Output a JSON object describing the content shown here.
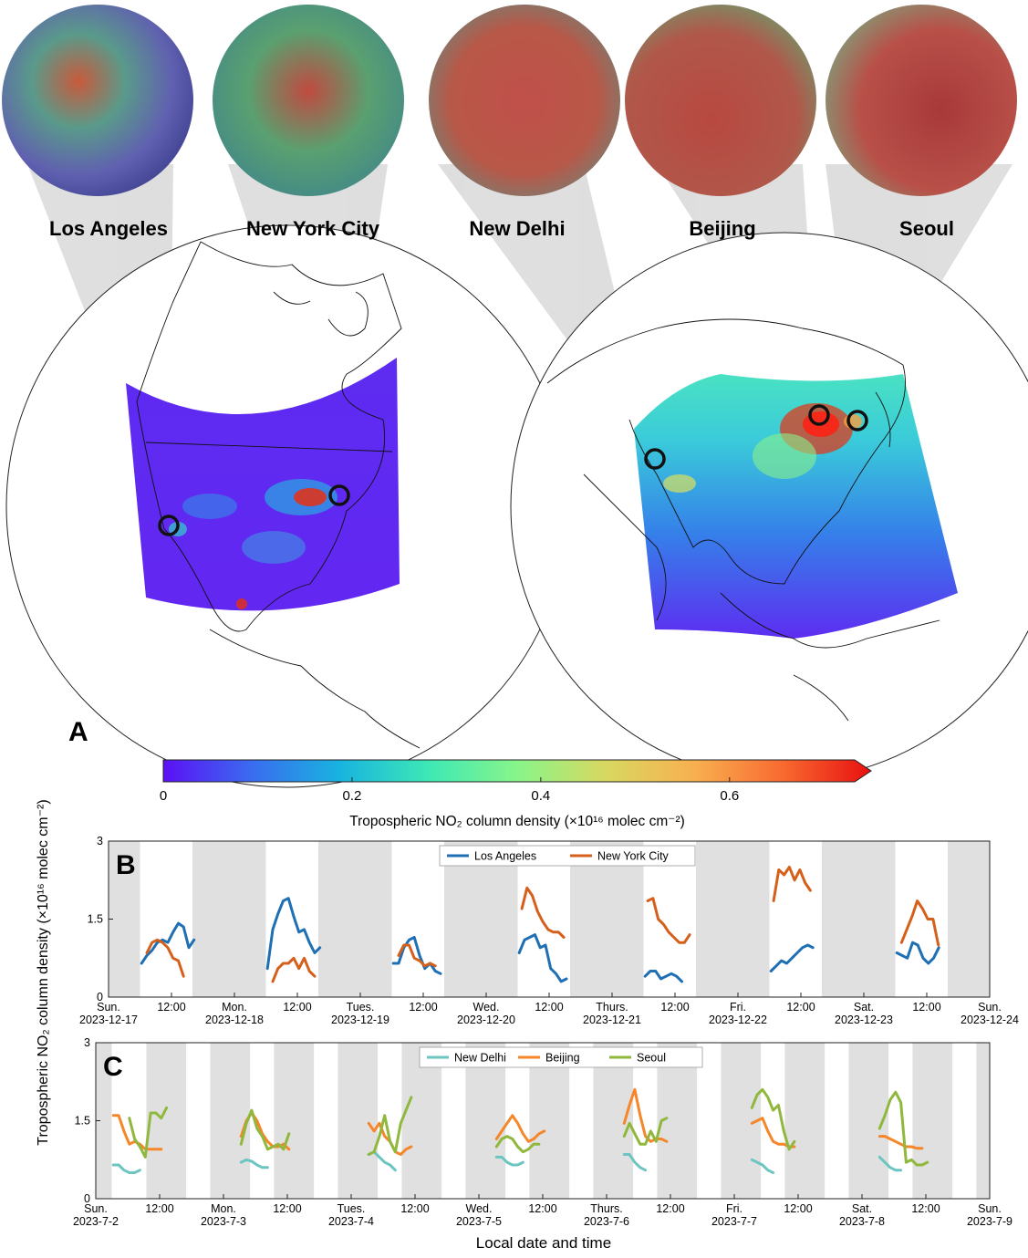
{
  "panel_a": {
    "letter": "A",
    "cities": [
      {
        "name": "Los Angeles",
        "color": "#5a5fb0"
      },
      {
        "name": "New York City",
        "color": "#3aa17a"
      },
      {
        "name": "New Delhi",
        "color": "#b9524a"
      },
      {
        "name": "Beijing",
        "color": "#b9524a"
      },
      {
        "name": "Seoul",
        "color": "#b24848"
      }
    ],
    "colorbar": {
      "ticks": [
        "0",
        "0.2",
        "0.4",
        "0.6"
      ],
      "label": "Tropospheric NO₂ column density (×10¹⁶ molec cm⁻²)",
      "colors": [
        "#5b10f5",
        "#3a6cf0",
        "#18b4df",
        "#3ee8b5",
        "#88f58a",
        "#d8d860",
        "#f8b050",
        "#f86a30",
        "#e81010"
      ]
    }
  },
  "chart_data": [
    {
      "type": "line",
      "panel": "B",
      "ylabel": "Tropospheric NO₂ column density (×10¹⁶ molec cm⁻²)",
      "ylim": [
        0,
        3
      ],
      "yticks": [
        "0",
        "1.5",
        "3"
      ],
      "xlim": [
        0,
        168
      ],
      "legend_position": "top-center",
      "xticks": [
        {
          "x": 0,
          "lines": [
            "Sun.",
            "2023-12-17"
          ]
        },
        {
          "x": 12,
          "lines": [
            "12:00"
          ]
        },
        {
          "x": 24,
          "lines": [
            "Mon.",
            "2023-12-18"
          ]
        },
        {
          "x": 36,
          "lines": [
            "12:00"
          ]
        },
        {
          "x": 48,
          "lines": [
            "Tues.",
            "2023-12-19"
          ]
        },
        {
          "x": 60,
          "lines": [
            "12:00"
          ]
        },
        {
          "x": 72,
          "lines": [
            "Wed.",
            "2023-12-20"
          ]
        },
        {
          "x": 84,
          "lines": [
            "12:00"
          ]
        },
        {
          "x": 96,
          "lines": [
            "Thurs.",
            "2023-12-21"
          ]
        },
        {
          "x": 108,
          "lines": [
            "12:00"
          ]
        },
        {
          "x": 120,
          "lines": [
            "Fri.",
            "2023-12-22"
          ]
        },
        {
          "x": 132,
          "lines": [
            "12:00"
          ]
        },
        {
          "x": 144,
          "lines": [
            "Sat.",
            "2023-12-23"
          ]
        },
        {
          "x": 156,
          "lines": [
            "12:00"
          ]
        },
        {
          "x": 168,
          "lines": [
            "Sun.",
            "2023-12-24"
          ]
        }
      ],
      "night_bands": [
        [
          0,
          6
        ],
        [
          16,
          30
        ],
        [
          40,
          54
        ],
        [
          64,
          78
        ],
        [
          88,
          102
        ],
        [
          112,
          126
        ],
        [
          136,
          150
        ],
        [
          160,
          168
        ]
      ],
      "series": [
        {
          "name": "Los Angeles",
          "color": "#1f6fb4",
          "days": [
            {
              "start": 6.3,
              "step": 1,
              "values": [
                0.65,
                0.8,
                0.9,
                1.05,
                1.1,
                1.05,
                1.25,
                1.42,
                1.35,
                0.95,
                1.1
              ]
            },
            {
              "start": 30.3,
              "step": 1,
              "values": [
                0.55,
                1.3,
                1.6,
                1.85,
                1.9,
                1.55,
                1.25,
                1.3,
                1.05,
                0.85,
                0.95
              ]
            },
            {
              "start": 54.3,
              "step": 1,
              "values": [
                0.65,
                0.65,
                0.95,
                1.1,
                1.15,
                0.8,
                0.55,
                0.65,
                0.5,
                0.45
              ]
            },
            {
              "start": 78.3,
              "step": 1,
              "values": [
                0.85,
                1.1,
                1.15,
                1.2,
                0.95,
                1.0,
                0.55,
                0.45,
                0.3,
                0.35
              ]
            },
            {
              "start": 102.3,
              "step": 1,
              "values": [
                0.4,
                0.5,
                0.5,
                0.35,
                0.4,
                0.45,
                0.4,
                0.3
              ]
            },
            {
              "start": 126.3,
              "step": 1,
              "values": [
                0.5,
                0.6,
                0.7,
                0.65,
                0.75,
                0.85,
                0.95,
                1.0,
                0.95
              ]
            },
            {
              "start": 150.3,
              "step": 1,
              "values": [
                0.85,
                0.8,
                0.75,
                1.05,
                1.0,
                0.75,
                0.65,
                0.75,
                0.95
              ]
            }
          ]
        },
        {
          "name": "New York City",
          "color": "#d5601c",
          "days": [
            {
              "start": 7.3,
              "step": 1,
              "values": [
                0.85,
                1.05,
                1.1,
                1.05,
                0.95,
                0.75,
                0.7,
                0.4
              ]
            },
            {
              "start": 31.3,
              "step": 1,
              "values": [
                0.3,
                0.55,
                0.65,
                0.65,
                0.75,
                0.55,
                0.75,
                0.5,
                0.4
              ]
            },
            {
              "start": 55.3,
              "step": 1,
              "values": [
                0.8,
                1.0,
                1.0,
                0.75,
                0.7,
                0.6,
                0.65,
                0.6
              ]
            },
            {
              "start": 78.8,
              "step": 1,
              "values": [
                1.7,
                2.1,
                1.95,
                1.65,
                1.45,
                1.3,
                1.25,
                1.25,
                1.15
              ]
            },
            {
              "start": 102.8,
              "step": 1,
              "values": [
                1.85,
                1.9,
                1.5,
                1.4,
                1.25,
                1.15,
                1.05,
                1.05,
                1.2
              ]
            },
            {
              "start": 126.8,
              "step": 1,
              "values": [
                1.85,
                2.45,
                2.35,
                2.5,
                2.25,
                2.45,
                2.2,
                2.05
              ]
            },
            {
              "start": 151.2,
              "step": 1,
              "values": [
                1.05,
                1.3,
                1.55,
                1.85,
                1.7,
                1.5,
                1.5,
                1.0
              ]
            }
          ]
        }
      ]
    },
    {
      "type": "line",
      "panel": "C",
      "xlabel": "Local date and time",
      "ylim": [
        0,
        3
      ],
      "yticks": [
        "0",
        "1.5",
        "3"
      ],
      "xlim": [
        0,
        168
      ],
      "legend_position": "top-center",
      "xticks": [
        {
          "x": 0,
          "lines": [
            "Sun.",
            "2023-7-2"
          ]
        },
        {
          "x": 12,
          "lines": [
            "12:00"
          ]
        },
        {
          "x": 24,
          "lines": [
            "Mon.",
            "2023-7-3"
          ]
        },
        {
          "x": 36,
          "lines": [
            "12:00"
          ]
        },
        {
          "x": 48,
          "lines": [
            "Tues.",
            "2023-7-4"
          ]
        },
        {
          "x": 60,
          "lines": [
            "12:00"
          ]
        },
        {
          "x": 72,
          "lines": [
            "Wed.",
            "2023-7-5"
          ]
        },
        {
          "x": 84,
          "lines": [
            "12:00"
          ]
        },
        {
          "x": 96,
          "lines": [
            "Thurs.",
            "2023-7-6"
          ]
        },
        {
          "x": 108,
          "lines": [
            "12:00"
          ]
        },
        {
          "x": 120,
          "lines": [
            "Fri.",
            "2023-7-7"
          ]
        },
        {
          "x": 132,
          "lines": [
            "12:00"
          ]
        },
        {
          "x": 144,
          "lines": [
            "Sat.",
            "2023-7-8"
          ]
        },
        {
          "x": 156,
          "lines": [
            "12:00"
          ]
        },
        {
          "x": 168,
          "lines": [
            "Sun.",
            "2023-7-9"
          ]
        }
      ],
      "night_bands": [
        [
          0,
          3
        ],
        [
          9.5,
          17
        ],
        [
          21.5,
          29
        ],
        [
          33.5,
          41
        ],
        [
          45.5,
          53
        ],
        [
          57.5,
          65
        ],
        [
          69.5,
          77
        ],
        [
          81.5,
          89
        ],
        [
          93.5,
          101
        ],
        [
          105.5,
          113
        ],
        [
          117.5,
          125
        ],
        [
          129.5,
          137
        ],
        [
          141.5,
          149
        ],
        [
          153.5,
          161
        ],
        [
          165.5,
          168
        ]
      ],
      "series": [
        {
          "name": "New Delhi",
          "color": "#6cc5c0",
          "days": [
            {
              "start": 3.3,
              "step": 1,
              "values": [
                0.65,
                0.65,
                0.55,
                0.5,
                0.5,
                0.55
              ]
            },
            {
              "start": 27.3,
              "step": 1,
              "values": [
                0.7,
                0.75,
                0.72,
                0.65,
                0.6,
                0.6
              ]
            },
            {
              "start": 51.3,
              "step": 1,
              "values": [
                0.85,
                0.9,
                0.8,
                0.7,
                0.65,
                0.55
              ]
            },
            {
              "start": 75.3,
              "step": 1,
              "values": [
                0.8,
                0.8,
                0.7,
                0.65,
                0.65,
                0.7
              ]
            },
            {
              "start": 99.3,
              "step": 1,
              "values": [
                0.85,
                0.85,
                0.7,
                0.6,
                0.55
              ]
            },
            {
              "start": 123.3,
              "step": 1,
              "values": [
                0.75,
                0.7,
                0.65,
                0.55,
                0.5
              ]
            },
            {
              "start": 147.3,
              "step": 1,
              "values": [
                0.8,
                0.7,
                0.6,
                0.55,
                0.55
              ]
            }
          ]
        },
        {
          "name": "Beijing",
          "color": "#f5862a",
          "days": [
            {
              "start": 3.3,
              "step": 1,
              "values": [
                1.6,
                1.6,
                1.3,
                1.05,
                1.1,
                1.05,
                0.95,
                0.95,
                0.95,
                0.95
              ]
            },
            {
              "start": 27.3,
              "step": 1,
              "values": [
                1.2,
                1.5,
                1.65,
                1.5,
                1.25,
                1.1,
                1.0,
                1.0,
                1.05,
                0.95
              ]
            },
            {
              "start": 51.3,
              "step": 1,
              "values": [
                1.45,
                1.3,
                1.45,
                1.2,
                1.1,
                0.9,
                0.85,
                0.95,
                1.0
              ]
            },
            {
              "start": 75.3,
              "step": 1,
              "values": [
                1.15,
                1.3,
                1.45,
                1.6,
                1.45,
                1.25,
                1.1,
                1.15,
                1.25,
                1.3
              ]
            },
            {
              "start": 99.3,
              "step": 1,
              "values": [
                1.45,
                1.8,
                2.1,
                1.6,
                1.2,
                1.1,
                1.15,
                1.15,
                1.1
              ]
            },
            {
              "start": 123.3,
              "step": 1,
              "values": [
                1.45,
                1.5,
                1.55,
                1.3,
                1.1,
                1.05,
                1.05,
                1.0,
                1.0
              ]
            },
            {
              "start": 147.3,
              "step": 1,
              "values": [
                1.2,
                1.2,
                1.15,
                1.1,
                1.05,
                1.0,
                1.0,
                0.97,
                0.97
              ]
            }
          ]
        },
        {
          "name": "Seoul",
          "color": "#8fb83c",
          "days": [
            {
              "start": 6.3,
              "step": 1,
              "values": [
                1.55,
                1.15,
                1.0,
                0.8,
                1.65,
                1.65,
                1.55,
                1.75
              ]
            },
            {
              "start": 27.3,
              "step": 1,
              "values": [
                1.05,
                1.45,
                1.7,
                1.35,
                1.2,
                0.95,
                1.0,
                1.05,
                0.95,
                1.25
              ]
            },
            {
              "start": 51.3,
              "step": 1,
              "values": [
                0.85,
                0.9,
                1.2,
                1.6,
                1.1,
                0.9,
                1.45,
                1.7,
                1.95
              ]
            },
            {
              "start": 75.3,
              "step": 1,
              "values": [
                1.0,
                1.15,
                1.2,
                1.15,
                1.0,
                0.9,
                0.95,
                1.05,
                1.05
              ]
            },
            {
              "start": 99.3,
              "step": 1,
              "values": [
                1.2,
                1.45,
                1.25,
                1.05,
                1.05,
                1.3,
                1.1,
                1.5,
                1.55
              ]
            },
            {
              "start": 123.3,
              "step": 1,
              "values": [
                1.75,
                2.0,
                2.1,
                1.95,
                1.7,
                1.8,
                1.3,
                0.95,
                1.1
              ]
            },
            {
              "start": 147.3,
              "step": 1,
              "values": [
                1.35,
                1.6,
                1.9,
                2.05,
                1.85,
                0.7,
                0.75,
                0.65,
                0.65,
                0.7
              ]
            }
          ]
        }
      ]
    }
  ]
}
